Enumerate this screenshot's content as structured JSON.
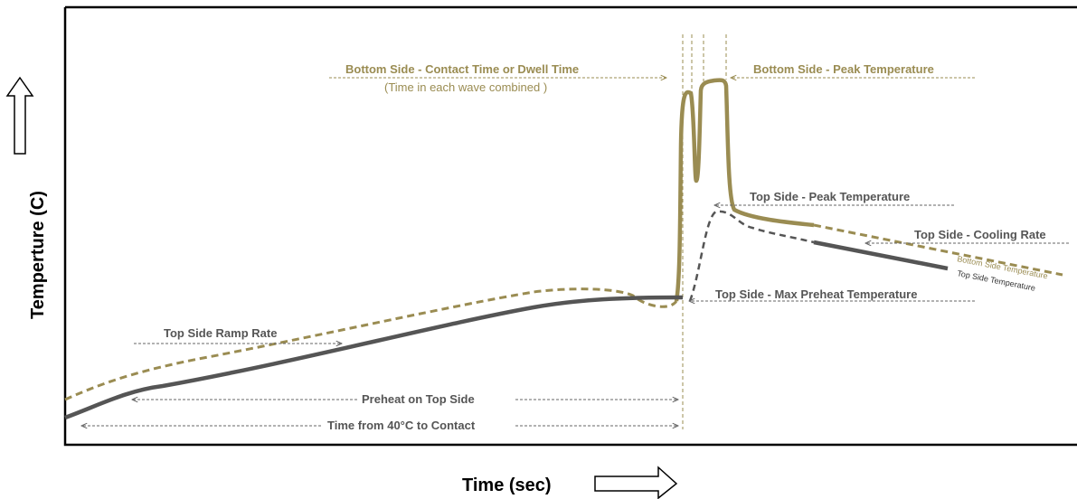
{
  "axes": {
    "x_title": "Time (sec)",
    "y_title": "Temperture (C)"
  },
  "labels": {
    "bottom_dwell": "Bottom Side - Contact Time or Dwell Time",
    "bottom_dwell_note": "(Time in each wave combined )",
    "bottom_peak": "Bottom Side - Peak Temperature",
    "top_peak": "Top Side - Peak Temperature",
    "top_cooling": "Top Side - Cooling Rate",
    "top_max_preheat": "Top Side  - Max Preheat Temperature",
    "top_ramp": "Top Side Ramp Rate",
    "preheat_top": "Preheat on Top Side",
    "time_40_contact": "Time from 40°C  to Contact"
  },
  "curves": {
    "bottom_label": "Bottom  Side Temperature",
    "top_label": "Top Side Temperature"
  },
  "colors": {
    "bottom_curve": "#9a8c52",
    "top_curve": "#555555",
    "gray_arrow": "#808080",
    "frame": "#000000"
  }
}
